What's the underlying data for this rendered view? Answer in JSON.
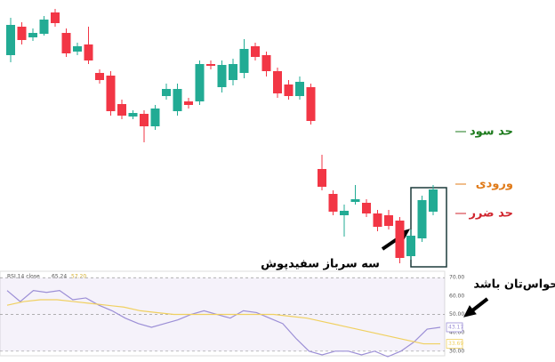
{
  "chart_data": [
    {
      "type": "candlestick",
      "ylim": [
        0,
        300
      ],
      "up_color": "#22ab94",
      "down_color": "#f23645",
      "open": [
        238,
        270,
        258,
        262,
        286,
        263,
        242,
        250,
        218,
        215,
        183,
        169,
        172,
        158,
        192,
        175,
        186,
        186,
        228,
        202,
        210,
        218,
        248,
        238,
        220,
        205,
        192,
        202,
        110,
        82,
        58,
        73,
        72,
        60,
        58,
        52,
        12,
        32,
        62
      ],
      "high": [
        280,
        275,
        268,
        282,
        290,
        268,
        252,
        270,
        222,
        220,
        188,
        176,
        176,
        182,
        206,
        206,
        190,
        232,
        232,
        232,
        234,
        256,
        252,
        242,
        224,
        210,
        214,
        206,
        126,
        86,
        70,
        92,
        76,
        64,
        64,
        56,
        42,
        80,
        92
      ],
      "low": [
        230,
        250,
        254,
        260,
        270,
        236,
        238,
        228,
        206,
        170,
        166,
        166,
        140,
        154,
        188,
        170,
        178,
        182,
        222,
        196,
        204,
        212,
        232,
        214,
        190,
        188,
        188,
        160,
        86,
        58,
        34,
        70,
        56,
        40,
        42,
        4,
        8,
        28,
        58
      ],
      "close": [
        272,
        255,
        263,
        278,
        274,
        240,
        248,
        232,
        210,
        175,
        170,
        173,
        158,
        178,
        200,
        200,
        182,
        228,
        226,
        227,
        228,
        245,
        236,
        220,
        195,
        192,
        208,
        164,
        90,
        62,
        63,
        76,
        60,
        45,
        46,
        10,
        35,
        75,
        87
      ],
      "levels": [
        {
          "label": "حد سود",
          "color": "#1e7b1e",
          "value": 152
        },
        {
          "label": "ورودی",
          "color": "#e07b1a",
          "value": 93
        },
        {
          "label": "حد ضرر",
          "color": "#d0262f",
          "value": 60
        }
      ],
      "annotations": [
        "سه سرباز سفیدپوش",
        "حواس‌تان باشد"
      ]
    },
    {
      "type": "line",
      "title": "RSI 14 close",
      "ylim": [
        27.5,
        73.5
      ],
      "yticks": [
        {
          "value": 30,
          "label": "30.00"
        },
        {
          "value": 40,
          "label": "40.00"
        },
        {
          "value": 50,
          "label": "50.00"
        },
        {
          "value": 60,
          "label": "60.00"
        },
        {
          "value": 70,
          "label": "70.00"
        }
      ],
      "series": [
        {
          "name": "65.24",
          "badge": "43.17",
          "color": "#9c8fd6",
          "values": [
            63,
            57,
            63,
            62,
            63,
            58,
            59,
            55,
            52,
            48,
            45,
            43,
            45,
            47,
            50,
            52,
            50,
            48,
            52,
            51,
            48,
            45,
            37,
            30,
            28,
            30,
            30,
            28,
            30,
            27,
            30,
            35,
            42,
            43
          ]
        },
        {
          "name": "57.20",
          "badge": "33.69",
          "color": "#f0d060",
          "values": [
            55,
            57,
            58,
            58,
            57,
            56,
            55,
            54,
            52,
            51,
            50,
            50,
            50,
            50,
            50,
            50,
            50,
            49,
            48,
            46,
            44,
            42,
            40,
            38,
            36,
            34,
            34
          ]
        }
      ]
    }
  ]
}
